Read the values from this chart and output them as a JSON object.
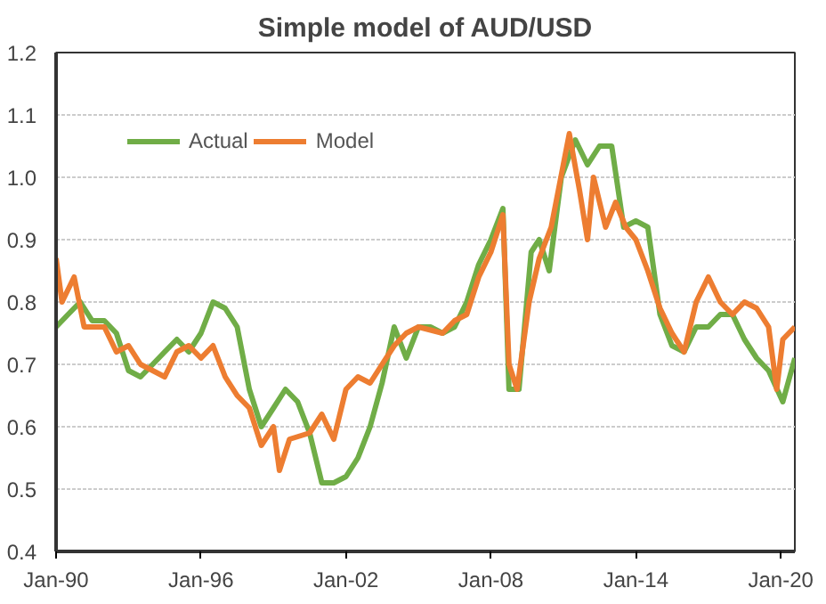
{
  "chart_data": {
    "type": "line",
    "title": "Simple model of AUD/USD",
    "xlim": [
      "1990-01",
      "2020-08"
    ],
    "xticks": [
      {
        "value": "1990-01",
        "label": "Jan-90"
      },
      {
        "value": "1996-01",
        "label": "Jan-96"
      },
      {
        "value": "2002-01",
        "label": "Jan-02"
      },
      {
        "value": "2008-01",
        "label": "Jan-08"
      },
      {
        "value": "2014-01",
        "label": "Jan-14"
      },
      {
        "value": "2020-01",
        "label": "Jan-20"
      }
    ],
    "ylim": [
      0.4,
      1.2
    ],
    "yticks": [
      0.4,
      0.5,
      0.6,
      0.7,
      0.8,
      0.9,
      {
        "value": 1.0,
        "label": "1.0"
      },
      1.1,
      1.2
    ],
    "grid": "y",
    "legend": "top left",
    "series": [
      {
        "name": "Actual",
        "color": "#70ad47",
        "x": [
          "1990-01",
          "1990-07",
          "1991-01",
          "1991-07",
          "1992-01",
          "1992-07",
          "1993-01",
          "1993-07",
          "1994-01",
          "1994-07",
          "1995-01",
          "1995-07",
          "1996-01",
          "1996-07",
          "1997-01",
          "1997-07",
          "1998-01",
          "1998-07",
          "1999-01",
          "1999-07",
          "2000-01",
          "2000-07",
          "2001-01",
          "2001-07",
          "2002-01",
          "2002-07",
          "2003-01",
          "2003-07",
          "2004-01",
          "2004-07",
          "2005-01",
          "2005-07",
          "2006-01",
          "2006-07",
          "2007-01",
          "2007-07",
          "2008-01",
          "2008-07",
          "2008-10",
          "2009-03",
          "2009-09",
          "2010-01",
          "2010-06",
          "2010-12",
          "2011-07",
          "2012-01",
          "2012-07",
          "2013-01",
          "2013-07",
          "2014-01",
          "2014-07",
          "2015-01",
          "2015-07",
          "2016-01",
          "2016-07",
          "2017-01",
          "2017-07",
          "2018-01",
          "2018-07",
          "2019-01",
          "2019-07",
          "2020-02",
          "2020-08"
        ],
        "values": [
          0.76,
          0.78,
          0.8,
          0.77,
          0.77,
          0.75,
          0.69,
          0.68,
          0.7,
          0.72,
          0.74,
          0.72,
          0.75,
          0.8,
          0.79,
          0.76,
          0.66,
          0.6,
          0.63,
          0.66,
          0.64,
          0.59,
          0.51,
          0.51,
          0.52,
          0.55,
          0.6,
          0.67,
          0.76,
          0.71,
          0.76,
          0.76,
          0.75,
          0.76,
          0.8,
          0.86,
          0.9,
          0.95,
          0.66,
          0.66,
          0.88,
          0.9,
          0.85,
          1.0,
          1.06,
          1.02,
          1.05,
          1.05,
          0.92,
          0.93,
          0.92,
          0.78,
          0.73,
          0.72,
          0.76,
          0.76,
          0.78,
          0.78,
          0.74,
          0.71,
          0.69,
          0.64,
          0.71
        ]
      },
      {
        "name": "Model",
        "color": "#ed7d31",
        "x": [
          "1990-01",
          "1990-04",
          "1990-10",
          "1991-03",
          "1992-01",
          "1992-07",
          "1993-01",
          "1993-07",
          "1994-01",
          "1994-07",
          "1995-01",
          "1995-07",
          "1996-01",
          "1996-07",
          "1997-01",
          "1997-07",
          "1998-01",
          "1998-07",
          "1999-01",
          "1999-04",
          "1999-09",
          "2000-07",
          "2001-01",
          "2001-07",
          "2002-01",
          "2002-07",
          "2003-01",
          "2003-07",
          "2004-01",
          "2004-07",
          "2005-01",
          "2006-01",
          "2006-07",
          "2007-01",
          "2007-07",
          "2008-01",
          "2008-07",
          "2008-10",
          "2009-02",
          "2009-08",
          "2010-01",
          "2010-07",
          "2011-04",
          "2011-09",
          "2012-01",
          "2012-04",
          "2012-10",
          "2013-03",
          "2013-08",
          "2014-01",
          "2014-07",
          "2015-01",
          "2015-07",
          "2016-01",
          "2016-07",
          "2017-01",
          "2017-07",
          "2018-01",
          "2018-07",
          "2019-01",
          "2019-07",
          "2019-11",
          "2020-02",
          "2020-08"
        ],
        "values": [
          0.87,
          0.8,
          0.84,
          0.76,
          0.76,
          0.72,
          0.73,
          0.7,
          0.69,
          0.68,
          0.72,
          0.73,
          0.71,
          0.73,
          0.68,
          0.65,
          0.63,
          0.57,
          0.6,
          0.53,
          0.58,
          0.59,
          0.62,
          0.58,
          0.66,
          0.68,
          0.67,
          0.7,
          0.73,
          0.75,
          0.76,
          0.75,
          0.77,
          0.78,
          0.84,
          0.88,
          0.94,
          0.7,
          0.66,
          0.8,
          0.87,
          0.92,
          1.07,
          0.98,
          0.9,
          1.0,
          0.92,
          0.96,
          0.92,
          0.9,
          0.85,
          0.79,
          0.75,
          0.72,
          0.8,
          0.84,
          0.8,
          0.78,
          0.8,
          0.79,
          0.76,
          0.66,
          0.74,
          0.76
        ]
      }
    ]
  }
}
